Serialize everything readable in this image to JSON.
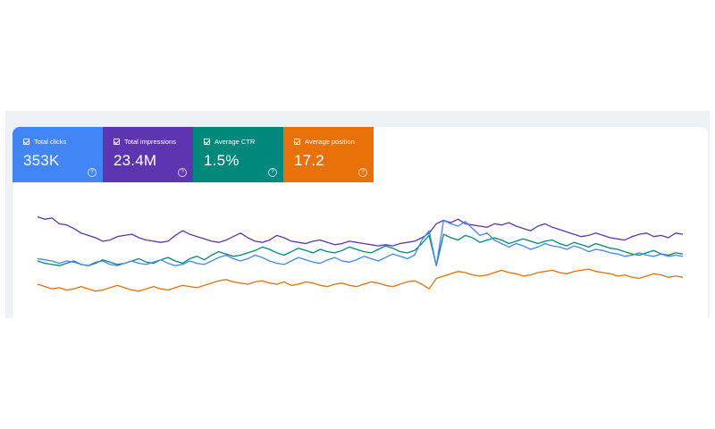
{
  "metrics": [
    {
      "label": "Total clicks",
      "value": "353K",
      "color": "#4285f4"
    },
    {
      "label": "Total impressions",
      "value": "23.4M",
      "color": "#5e35b1"
    },
    {
      "label": "Average CTR",
      "value": "1.5%",
      "color": "#00897b"
    },
    {
      "label": "Average position",
      "value": "17.2",
      "color": "#e8710a"
    }
  ],
  "chart_data": {
    "type": "line",
    "grid": false,
    "legend": "none",
    "series": [
      {
        "color": "#5e35b1",
        "values": [
          0.78,
          0.76,
          0.77,
          0.72,
          0.71,
          0.68,
          0.64,
          0.62,
          0.6,
          0.57,
          0.58,
          0.61,
          0.62,
          0.63,
          0.6,
          0.58,
          0.57,
          0.56,
          0.57,
          0.62,
          0.66,
          0.63,
          0.61,
          0.59,
          0.57,
          0.56,
          0.58,
          0.61,
          0.64,
          0.6,
          0.57,
          0.56,
          0.58,
          0.62,
          0.6,
          0.57,
          0.56,
          0.55,
          0.57,
          0.58,
          0.56,
          0.54,
          0.55,
          0.57,
          0.56,
          0.55,
          0.54,
          0.53,
          0.54,
          0.53,
          0.55,
          0.56,
          0.57,
          0.6,
          0.64,
          0.72,
          0.75,
          0.73,
          0.76,
          0.72,
          0.71,
          0.7,
          0.69,
          0.72,
          0.71,
          0.73,
          0.7,
          0.68,
          0.66,
          0.7,
          0.72,
          0.69,
          0.67,
          0.65,
          0.63,
          0.61,
          0.62,
          0.64,
          0.62,
          0.6,
          0.59,
          0.58,
          0.61,
          0.63,
          0.64,
          0.61,
          0.62,
          0.6,
          0.64,
          0.63
        ]
      },
      {
        "color": "#00897b",
        "values": [
          0.4,
          0.38,
          0.37,
          0.36,
          0.38,
          0.4,
          0.37,
          0.36,
          0.38,
          0.41,
          0.39,
          0.37,
          0.38,
          0.4,
          0.42,
          0.39,
          0.38,
          0.41,
          0.43,
          0.4,
          0.38,
          0.42,
          0.44,
          0.41,
          0.45,
          0.48,
          0.46,
          0.44,
          0.45,
          0.47,
          0.49,
          0.52,
          0.5,
          0.47,
          0.45,
          0.48,
          0.51,
          0.49,
          0.47,
          0.5,
          0.48,
          0.47,
          0.49,
          0.52,
          0.5,
          0.48,
          0.47,
          0.5,
          0.53,
          0.51,
          0.48,
          0.47,
          0.49,
          0.55,
          0.62,
          0.36,
          0.63,
          0.6,
          0.58,
          0.62,
          0.6,
          0.56,
          0.58,
          0.6,
          0.58,
          0.55,
          0.57,
          0.59,
          0.57,
          0.55,
          0.57,
          0.58,
          0.55,
          0.53,
          0.56,
          0.54,
          0.52,
          0.55,
          0.53,
          0.51,
          0.5,
          0.48,
          0.46,
          0.45,
          0.47,
          0.49,
          0.46,
          0.45,
          0.47,
          0.46
        ]
      },
      {
        "color": "#4285f4",
        "values": [
          0.42,
          0.41,
          0.4,
          0.38,
          0.4,
          0.39,
          0.37,
          0.36,
          0.39,
          0.4,
          0.37,
          0.36,
          0.38,
          0.4,
          0.38,
          0.37,
          0.39,
          0.41,
          0.38,
          0.36,
          0.37,
          0.4,
          0.38,
          0.37,
          0.4,
          0.43,
          0.45,
          0.42,
          0.4,
          0.42,
          0.45,
          0.43,
          0.4,
          0.38,
          0.37,
          0.4,
          0.43,
          0.41,
          0.39,
          0.38,
          0.41,
          0.43,
          0.4,
          0.39,
          0.41,
          0.44,
          0.42,
          0.4,
          0.43,
          0.46,
          0.44,
          0.42,
          0.45,
          0.58,
          0.66,
          0.36,
          0.75,
          0.72,
          0.7,
          0.74,
          0.68,
          0.62,
          0.64,
          0.58,
          0.55,
          0.52,
          0.55,
          0.53,
          0.5,
          0.52,
          0.55,
          0.53,
          0.52,
          0.5,
          0.53,
          0.51,
          0.48,
          0.5,
          0.49,
          0.47,
          0.46,
          0.44,
          0.45,
          0.47,
          0.45,
          0.44,
          0.46,
          0.44,
          0.45,
          0.44
        ]
      },
      {
        "color": "#e8710a",
        "values": [
          0.2,
          0.18,
          0.16,
          0.17,
          0.15,
          0.16,
          0.18,
          0.16,
          0.14,
          0.15,
          0.17,
          0.19,
          0.17,
          0.15,
          0.14,
          0.16,
          0.18,
          0.16,
          0.15,
          0.17,
          0.19,
          0.18,
          0.17,
          0.19,
          0.21,
          0.23,
          0.24,
          0.22,
          0.21,
          0.2,
          0.22,
          0.23,
          0.21,
          0.2,
          0.22,
          0.19,
          0.2,
          0.22,
          0.21,
          0.19,
          0.18,
          0.2,
          0.21,
          0.19,
          0.18,
          0.2,
          0.22,
          0.21,
          0.19,
          0.18,
          0.2,
          0.22,
          0.23,
          0.2,
          0.16,
          0.25,
          0.27,
          0.29,
          0.31,
          0.3,
          0.28,
          0.27,
          0.28,
          0.3,
          0.32,
          0.3,
          0.29,
          0.27,
          0.28,
          0.3,
          0.31,
          0.32,
          0.3,
          0.29,
          0.31,
          0.32,
          0.33,
          0.31,
          0.3,
          0.29,
          0.27,
          0.28,
          0.26,
          0.25,
          0.27,
          0.29,
          0.28,
          0.26,
          0.27,
          0.26
        ]
      }
    ]
  }
}
